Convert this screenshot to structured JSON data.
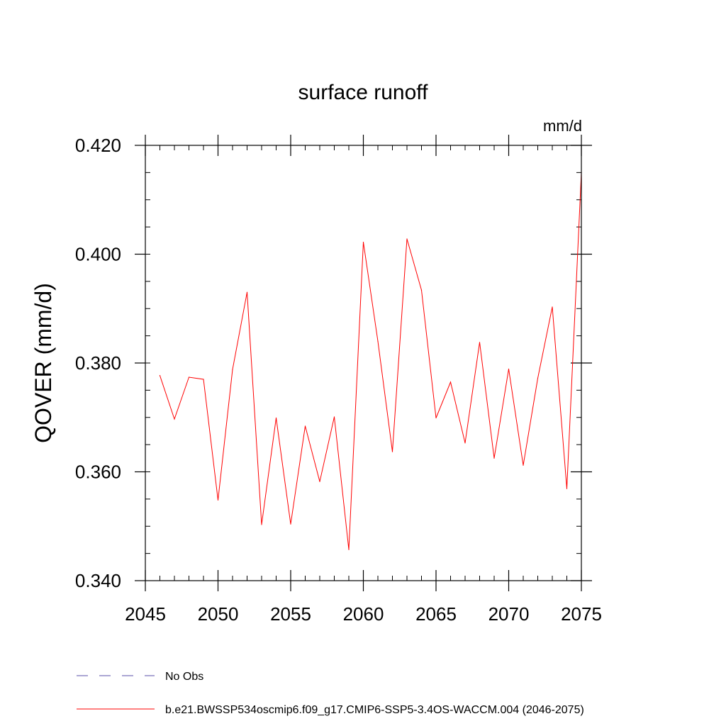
{
  "chart_data": {
    "type": "line",
    "title": "surface runoff",
    "units_label": "mm/d",
    "xlabel": "",
    "ylabel": "QOVER  (mm/d)",
    "xlim": [
      2045,
      2075
    ],
    "ylim": [
      0.34,
      0.42
    ],
    "x_ticks": [
      2045,
      2050,
      2055,
      2060,
      2065,
      2070,
      2075
    ],
    "x_tick_labels": [
      "2045",
      "2050",
      "2055",
      "2060",
      "2065",
      "2070",
      "2075"
    ],
    "y_ticks": [
      0.34,
      0.36,
      0.38,
      0.4,
      0.42
    ],
    "y_tick_labels": [
      "0.340",
      "0.360",
      "0.380",
      "0.400",
      "0.420"
    ],
    "y_minor_step": 0.005,
    "x_minor_step": 1,
    "series": [
      {
        "name": "b.e21.BWSSP534oscmip6.f09_g17.CMIP6-SSP5-3.4OS-WACCM.004 (2046-2075)",
        "color": "#ff0000",
        "x": [
          2046,
          2047,
          2048,
          2049,
          2050,
          2051,
          2052,
          2053,
          2054,
          2055,
          2056,
          2057,
          2058,
          2059,
          2060,
          2061,
          2062,
          2063,
          2064,
          2065,
          2066,
          2067,
          2068,
          2069,
          2070,
          2071,
          2072,
          2073,
          2074,
          2075
        ],
        "values": [
          0.3777,
          0.3697,
          0.3774,
          0.377,
          0.3548,
          0.3788,
          0.393,
          0.3503,
          0.3699,
          0.3504,
          0.3684,
          0.3582,
          0.3701,
          0.3457,
          0.4022,
          0.384,
          0.3637,
          0.4028,
          0.3934,
          0.3699,
          0.3765,
          0.3653,
          0.3838,
          0.3625,
          0.3789,
          0.3612,
          0.3772,
          0.3903,
          0.3569,
          0.415
        ]
      }
    ],
    "legend": [
      {
        "label": "No Obs",
        "style": "dashed",
        "color": "#5a4fa8"
      },
      {
        "label": "b.e21.BWSSP534oscmip6.f09_g17.CMIP6-SSP5-3.4OS-WACCM.004 (2046-2075)",
        "style": "solid",
        "color": "#ff0000"
      }
    ],
    "legend_position": "bottom-left"
  }
}
